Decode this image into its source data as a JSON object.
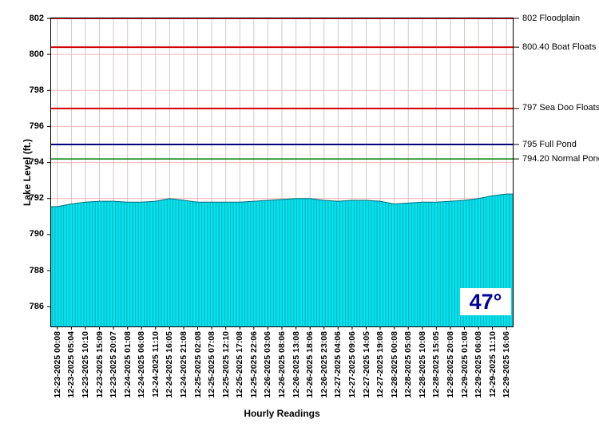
{
  "chart_data": {
    "type": "area",
    "title": "",
    "xlabel": "Hourly Readings",
    "ylabel": "Lake Level (ft.)",
    "series_name": "Lake Level",
    "ylim": [
      784.9,
      802
    ],
    "yticks": [
      786,
      788,
      790,
      792,
      794,
      796,
      798,
      800,
      802
    ],
    "categories": [
      "12-23-2025 00:08",
      "12-23-2025 05:04",
      "12-23-2025 10:10",
      "12-23-2025 15:09",
      "12-23-2025 20:07",
      "12-24-2025 01:08",
      "12-24-2025 06:08",
      "12-24-2025 11:10",
      "12-24-2025 16:05",
      "12-24-2025 21:08",
      "12-25-2025 02:08",
      "12-25-2025 07:08",
      "12-25-2025 12:10",
      "12-25-2025 17:08",
      "12-25-2025 22:06",
      "12-26-2025 03:06",
      "12-26-2025 08:06",
      "12-26-2025 13:08",
      "12-26-2025 18:06",
      "12-26-2025 23:08",
      "12-27-2025 04:06",
      "12-27-2025 09:06",
      "12-27-2025 14:05",
      "12-27-2025 19:08",
      "12-28-2025 00:08",
      "12-28-2025 05:08",
      "12-28-2025 10:08",
      "12-28-2025 15:05",
      "12-28-2025 20:08",
      "12-29-2025 01:08",
      "12-29-2025 06:08",
      "12-29-2025 11:10",
      "12-29-2025 16:06"
    ],
    "values": [
      791.55,
      791.7,
      791.8,
      791.85,
      791.85,
      791.8,
      791.8,
      791.85,
      792.0,
      791.9,
      791.8,
      791.8,
      791.8,
      791.8,
      791.85,
      791.9,
      791.95,
      792.0,
      792.0,
      791.9,
      791.85,
      791.9,
      791.9,
      791.85,
      791.7,
      791.75,
      791.8,
      791.8,
      791.85,
      791.9,
      792.0,
      792.15,
      792.25
    ],
    "reference_lines": [
      {
        "value": 802,
        "label": "802 Floodplain",
        "color": "#D40000",
        "stroke_width": 2
      },
      {
        "value": 800.4,
        "label": "800.40 Boat Floats",
        "color": "#D40000",
        "stroke_width": 2
      },
      {
        "value": 797,
        "label": "797 Sea Doo Floats",
        "color": "#D40000",
        "stroke_width": 2
      },
      {
        "value": 795,
        "label": "795 Full Pond",
        "color": "#000080",
        "stroke_width": 2
      },
      {
        "value": 794.2,
        "label": "794.20 Normal Pond",
        "color": "#008000",
        "stroke_width": 1.5
      }
    ],
    "grid": true,
    "legend": "none",
    "area_color": "#00E6EE",
    "hatch_color": "#18A8BC",
    "outline_color": "#006E7A",
    "grid_color_h": "#F0B4B4",
    "grid_color_v": "#D6C6C6",
    "axis_color": "#000000"
  },
  "badge": {
    "temperature": "47°",
    "color": "#000099"
  }
}
